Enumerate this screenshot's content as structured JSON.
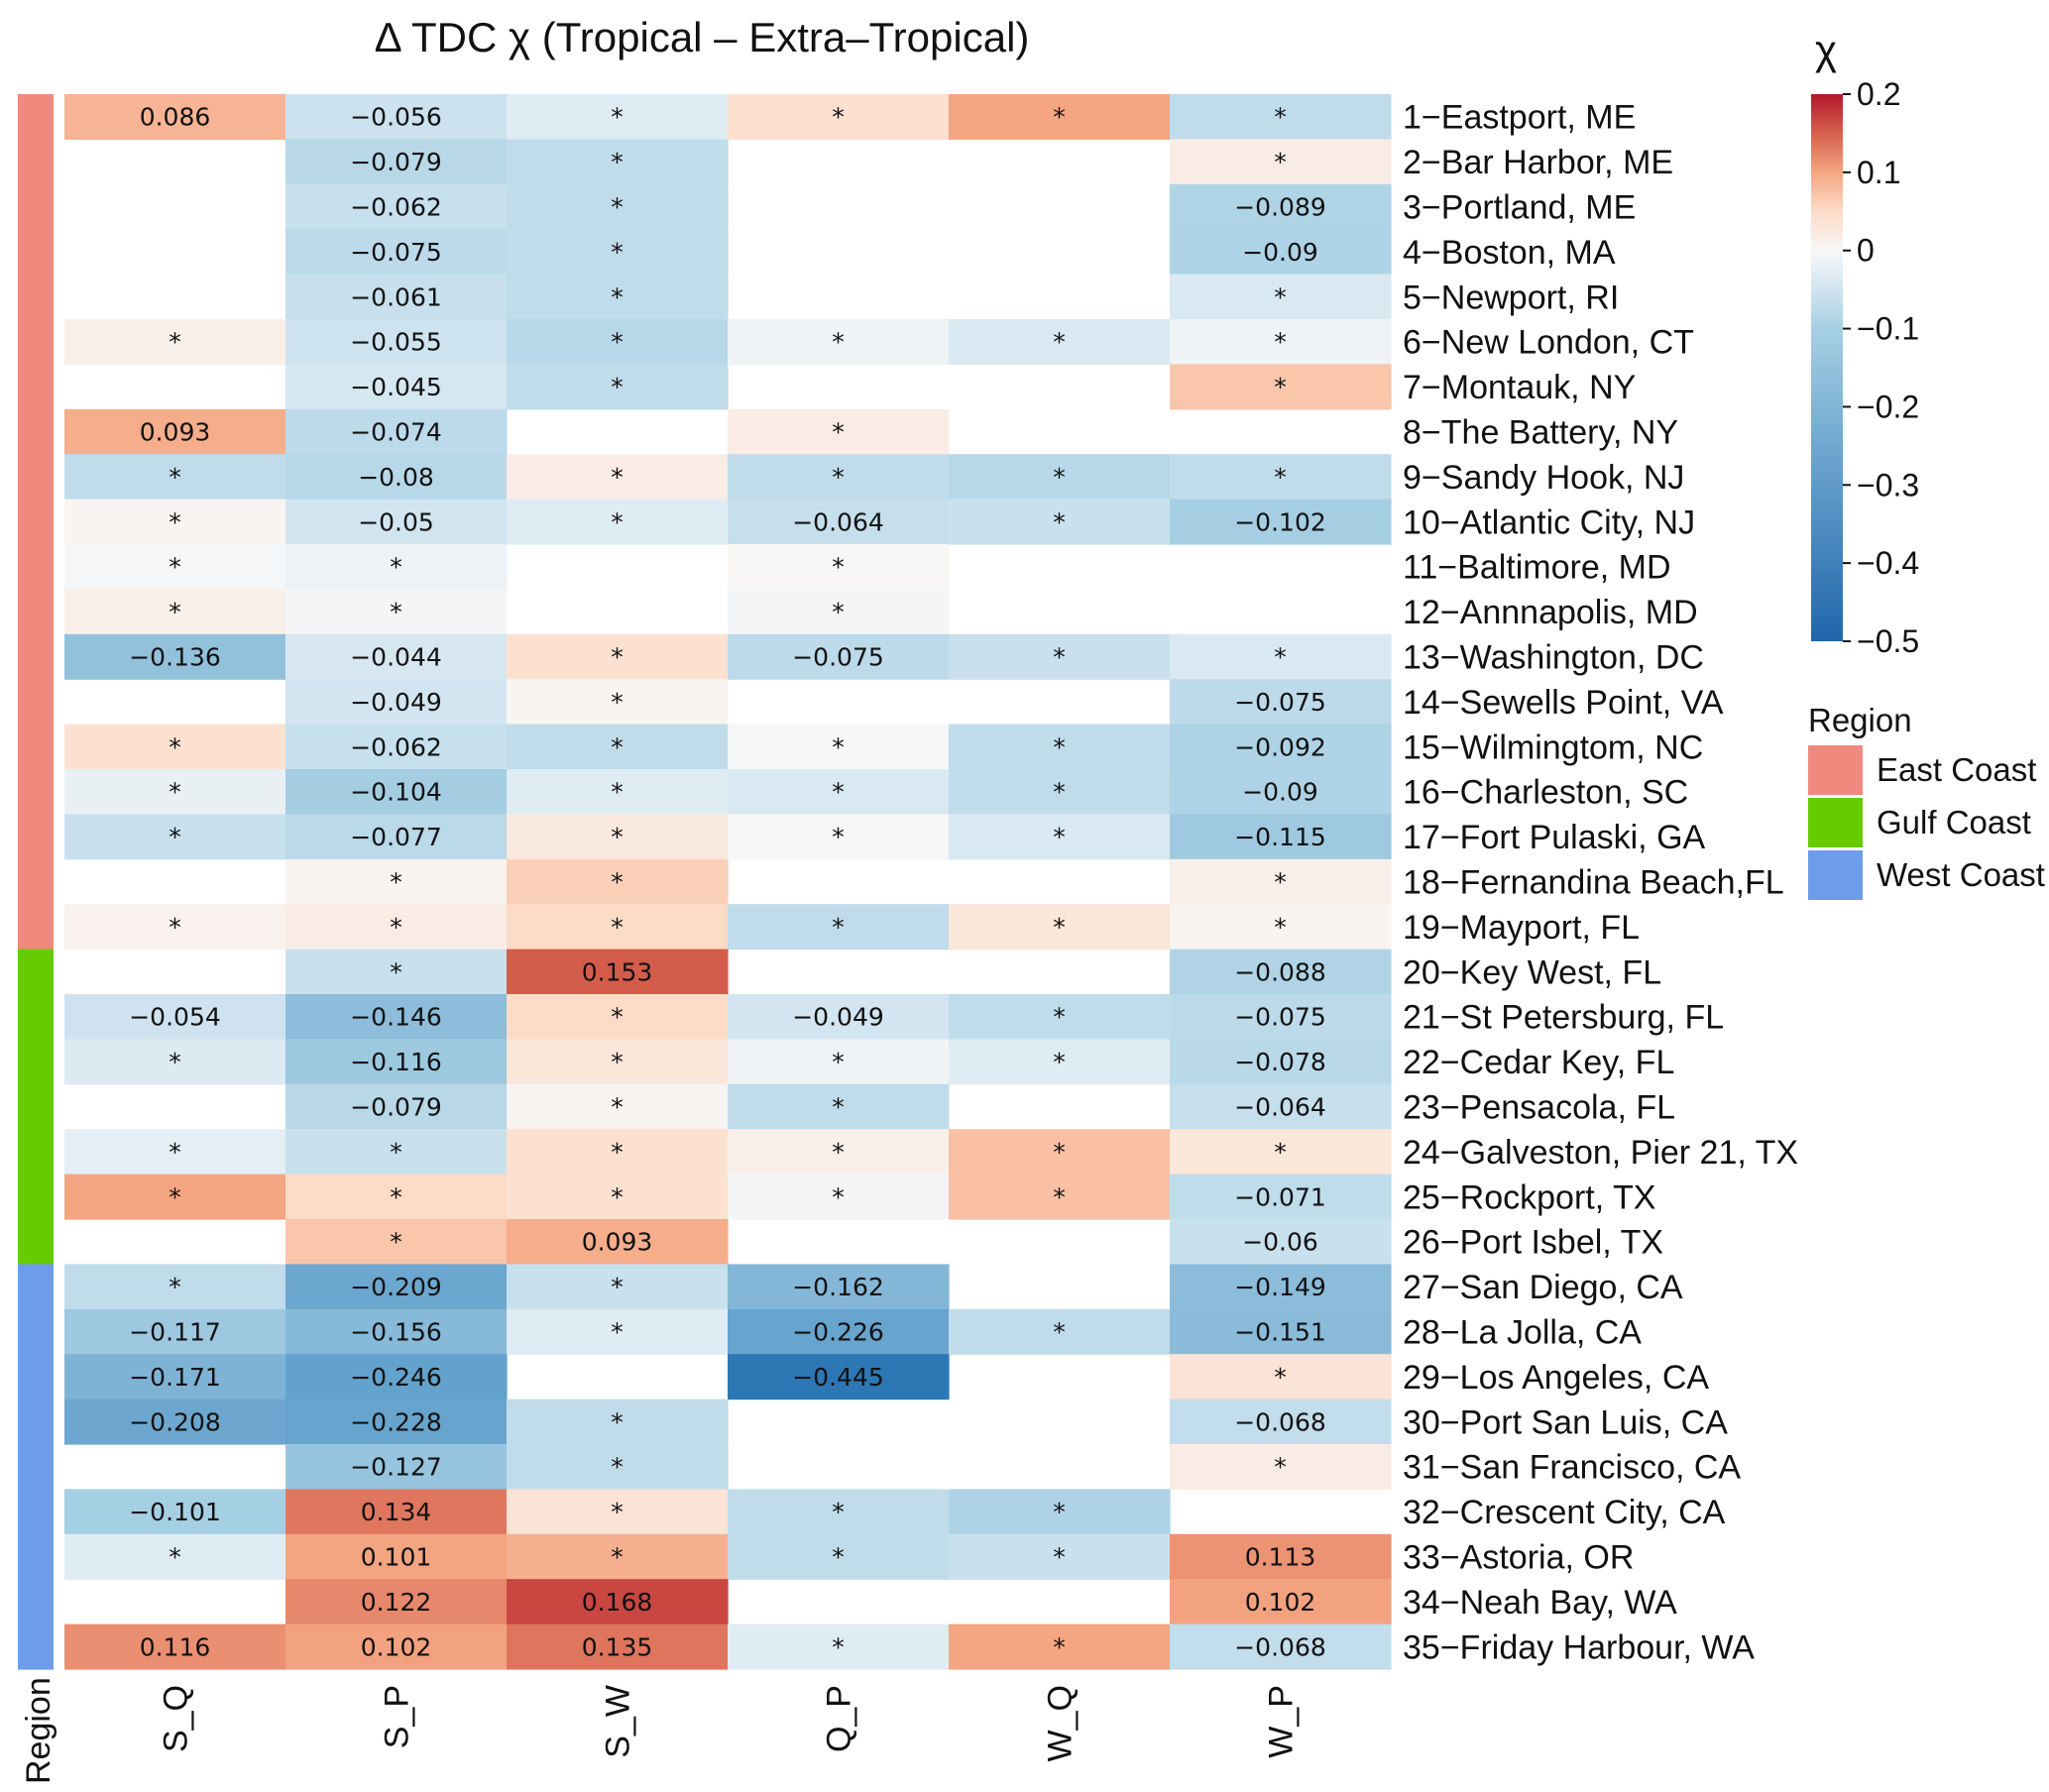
{
  "chart_data": {
    "type": "heatmap",
    "title": "Δ TDC  χ (Tropical – Extra–Tropical)",
    "columns": [
      "S_Q",
      "S_P",
      "S_W",
      "Q_P",
      "W_Q",
      "W_P"
    ],
    "region_axis_label": "Region",
    "value_range": [
      -0.5,
      0.2
    ],
    "colorbar": {
      "label": "χ",
      "ticks": [
        "0.2",
        "0.1",
        "0",
        "−0.1",
        "−0.2",
        "−0.3",
        "−0.4",
        "−0.5"
      ],
      "tick_values": [
        0.2,
        0.1,
        0,
        -0.1,
        -0.2,
        -0.3,
        -0.4,
        -0.5
      ]
    },
    "legend": {
      "title": "Region",
      "position": "right",
      "items": [
        {
          "label": "East Coast",
          "color": "#f08a7e"
        },
        {
          "label": "Gulf Coast",
          "color": "#66cc00"
        },
        {
          "label": "West Coast",
          "color": "#6d9ceb"
        }
      ]
    },
    "rows": [
      {
        "label": "1−Eastport, ME",
        "region": "East Coast",
        "values": [
          0.086,
          -0.056,
          -0.03,
          0.04,
          0.1,
          -0.07
        ],
        "text": [
          "0.086",
          "−0.056",
          "*",
          "*",
          "*",
          "*"
        ]
      },
      {
        "label": "2−Bar Harbor, ME",
        "region": "East Coast",
        "values": [
          null,
          -0.079,
          -0.07,
          null,
          null,
          0.02
        ],
        "text": [
          "",
          "−0.079",
          "*",
          "",
          "",
          "*"
        ]
      },
      {
        "label": "3−Portland, ME",
        "region": "East Coast",
        "values": [
          null,
          -0.062,
          -0.07,
          null,
          null,
          -0.089
        ],
        "text": [
          "",
          "−0.062",
          "*",
          "",
          "",
          "−0.089"
        ]
      },
      {
        "label": "4−Boston, MA",
        "region": "East Coast",
        "values": [
          null,
          -0.075,
          -0.07,
          null,
          null,
          -0.09
        ],
        "text": [
          "",
          "−0.075",
          "*",
          "",
          "",
          "−0.09"
        ]
      },
      {
        "label": "5−Newport, RI",
        "region": "East Coast",
        "values": [
          null,
          -0.061,
          -0.07,
          null,
          null,
          -0.04
        ],
        "text": [
          "",
          "−0.061",
          "*",
          "",
          "",
          "*"
        ]
      },
      {
        "label": "6−New London, CT",
        "region": "East Coast",
        "values": [
          0.015,
          -0.055,
          -0.08,
          -0.01,
          -0.04,
          -0.01
        ],
        "text": [
          "*",
          "−0.055",
          "*",
          "*",
          "*",
          "*"
        ]
      },
      {
        "label": "7−Montauk, NY",
        "region": "East Coast",
        "values": [
          null,
          -0.045,
          -0.07,
          null,
          null,
          0.07
        ],
        "text": [
          "",
          "−0.045",
          "*",
          "",
          "",
          "*"
        ]
      },
      {
        "label": "8−The Battery, NY",
        "region": "East Coast",
        "values": [
          0.093,
          -0.074,
          null,
          0.02,
          null,
          null
        ],
        "text": [
          "0.093",
          "−0.074",
          "",
          "*",
          "",
          ""
        ]
      },
      {
        "label": "9−Sandy Hook, NJ",
        "region": "East Coast",
        "values": [
          -0.07,
          -0.08,
          0.02,
          -0.07,
          -0.08,
          -0.07
        ],
        "text": [
          "*",
          "−0.08",
          "*",
          "*",
          "*",
          "*"
        ]
      },
      {
        "label": "10−Atlantic City, NJ",
        "region": "East Coast",
        "values": [
          0.005,
          -0.05,
          -0.03,
          -0.064,
          -0.06,
          -0.102
        ],
        "text": [
          "*",
          "−0.05",
          "*",
          "−0.064",
          "*",
          "−0.102"
        ]
      },
      {
        "label": "11−Baltimore, MD",
        "region": "East Coast",
        "values": [
          -0.003,
          -0.015,
          null,
          0.002,
          null,
          null
        ],
        "text": [
          "*",
          "*",
          "",
          "*",
          "",
          ""
        ]
      },
      {
        "label": "12−Annnapolis, MD",
        "region": "East Coast",
        "values": [
          0.015,
          -0.005,
          null,
          -0.005,
          null,
          null
        ],
        "text": [
          "*",
          "*",
          "",
          "*",
          "",
          ""
        ]
      },
      {
        "label": "13−Washington, DC",
        "region": "East Coast",
        "values": [
          -0.136,
          -0.044,
          0.04,
          -0.075,
          -0.06,
          -0.04
        ],
        "text": [
          "−0.136",
          "−0.044",
          "*",
          "−0.075",
          "*",
          "*"
        ]
      },
      {
        "label": "14−Sewells Point, VA",
        "region": "East Coast",
        "values": [
          null,
          -0.049,
          0.005,
          null,
          null,
          -0.075
        ],
        "text": [
          "",
          "−0.049",
          "*",
          "",
          "",
          "−0.075"
        ]
      },
      {
        "label": "15−Wilmingtom, NC",
        "region": "East Coast",
        "values": [
          0.04,
          -0.062,
          -0.07,
          -0.003,
          -0.07,
          -0.092
        ],
        "text": [
          "*",
          "−0.062",
          "*",
          "*",
          "*",
          "−0.092"
        ]
      },
      {
        "label": "16−Charleston, SC",
        "region": "East Coast",
        "values": [
          -0.02,
          -0.104,
          -0.03,
          -0.04,
          -0.07,
          -0.09
        ],
        "text": [
          "*",
          "−0.104",
          "*",
          "*",
          "*",
          "−0.09"
        ]
      },
      {
        "label": "17−Fort Pulaski, GA",
        "region": "East Coast",
        "values": [
          -0.06,
          -0.077,
          0.025,
          -0.003,
          -0.04,
          -0.115
        ],
        "text": [
          "*",
          "−0.077",
          "*",
          "*",
          "*",
          "−0.115"
        ]
      },
      {
        "label": "18−Fernandina Beach,FL",
        "region": "East Coast",
        "values": [
          null,
          0.008,
          0.06,
          null,
          null,
          0.015
        ],
        "text": [
          "",
          "*",
          "*",
          "",
          "",
          "*"
        ]
      },
      {
        "label": "19−Mayport, FL",
        "region": "East Coast",
        "values": [
          0.01,
          0.02,
          0.05,
          -0.07,
          0.03,
          0.006
        ],
        "text": [
          "*",
          "*",
          "*",
          "*",
          "*",
          "*"
        ]
      },
      {
        "label": "20−Key West, FL",
        "region": "Gulf Coast",
        "values": [
          null,
          -0.06,
          0.153,
          null,
          null,
          -0.088
        ],
        "text": [
          "",
          "*",
          "0.153",
          "",
          "",
          "−0.088"
        ]
      },
      {
        "label": "21−St Petersburg, FL",
        "region": "Gulf Coast",
        "values": [
          -0.054,
          -0.146,
          0.05,
          -0.049,
          -0.07,
          -0.075
        ],
        "text": [
          "−0.054",
          "−0.146",
          "*",
          "−0.049",
          "*",
          "−0.075"
        ]
      },
      {
        "label": "22−Cedar Key, FL",
        "region": "Gulf Coast",
        "values": [
          -0.035,
          -0.116,
          0.03,
          -0.01,
          -0.03,
          -0.078
        ],
        "text": [
          "*",
          "−0.116",
          "*",
          "*",
          "*",
          "−0.078"
        ]
      },
      {
        "label": "23−Pensacola, FL",
        "region": "Gulf Coast",
        "values": [
          null,
          -0.079,
          0.006,
          -0.07,
          null,
          -0.064
        ],
        "text": [
          "",
          "−0.079",
          "*",
          "*",
          "",
          "−0.064"
        ]
      },
      {
        "label": "24−Galveston, Pier 21, TX",
        "region": "Gulf Coast",
        "values": [
          -0.025,
          -0.06,
          0.04,
          0.015,
          0.075,
          0.03
        ],
        "text": [
          "*",
          "*",
          "*",
          "*",
          "*",
          "*"
        ]
      },
      {
        "label": "25−Rockport, TX",
        "region": "Gulf Coast",
        "values": [
          0.1,
          0.05,
          0.04,
          -0.005,
          0.075,
          -0.071
        ],
        "text": [
          "*",
          "*",
          "*",
          "*",
          "*",
          "−0.071"
        ]
      },
      {
        "label": "26−Port Isbel, TX",
        "region": "Gulf Coast",
        "values": [
          null,
          0.07,
          0.093,
          null,
          null,
          -0.06
        ],
        "text": [
          "",
          "*",
          "0.093",
          "",
          "",
          "−0.06"
        ]
      },
      {
        "label": "27−San Diego, CA",
        "region": "West Coast",
        "values": [
          -0.07,
          -0.209,
          -0.06,
          -0.162,
          null,
          -0.149
        ],
        "text": [
          "*",
          "−0.209",
          "*",
          "−0.162",
          "",
          "−0.149"
        ]
      },
      {
        "label": "28−La Jolla, CA",
        "region": "West Coast",
        "values": [
          -0.117,
          -0.156,
          -0.03,
          -0.226,
          -0.07,
          -0.151
        ],
        "text": [
          "−0.117",
          "−0.156",
          "*",
          "−0.226",
          "*",
          "−0.151"
        ]
      },
      {
        "label": "29−Los Angeles, CA",
        "region": "West Coast",
        "values": [
          -0.171,
          -0.246,
          null,
          -0.445,
          null,
          0.035
        ],
        "text": [
          "−0.171",
          "−0.246",
          "",
          "−0.445",
          "",
          "*"
        ]
      },
      {
        "label": "30−Port San Luis, CA",
        "region": "West Coast",
        "values": [
          -0.208,
          -0.228,
          -0.07,
          null,
          null,
          -0.068
        ],
        "text": [
          "−0.208",
          "−0.228",
          "*",
          "",
          "",
          "−0.068"
        ]
      },
      {
        "label": "31−San Francisco, CA",
        "region": "West Coast",
        "values": [
          null,
          -0.127,
          -0.07,
          null,
          null,
          0.02
        ],
        "text": [
          "",
          "−0.127",
          "*",
          "",
          "",
          "*"
        ]
      },
      {
        "label": "32−Crescent City, CA",
        "region": "West Coast",
        "values": [
          -0.101,
          0.134,
          0.035,
          -0.07,
          -0.09,
          null
        ],
        "text": [
          "−0.101",
          "0.134",
          "*",
          "*",
          "*",
          ""
        ]
      },
      {
        "label": "33−Astoria, OR",
        "region": "West Coast",
        "values": [
          -0.03,
          0.101,
          0.09,
          -0.07,
          -0.06,
          0.113
        ],
        "text": [
          "*",
          "0.101",
          "*",
          "*",
          "*",
          "0.113"
        ]
      },
      {
        "label": "34−Neah Bay, WA",
        "region": "West Coast",
        "values": [
          null,
          0.122,
          0.168,
          null,
          null,
          0.102
        ],
        "text": [
          "",
          "0.122",
          "0.168",
          "",
          "",
          "0.102"
        ]
      },
      {
        "label": "35−Friday Harbour, WA",
        "region": "West Coast",
        "values": [
          0.116,
          0.102,
          0.135,
          -0.03,
          0.1,
          -0.068
        ],
        "text": [
          "0.116",
          "0.102",
          "0.135",
          "*",
          "*",
          "−0.068"
        ]
      }
    ]
  }
}
